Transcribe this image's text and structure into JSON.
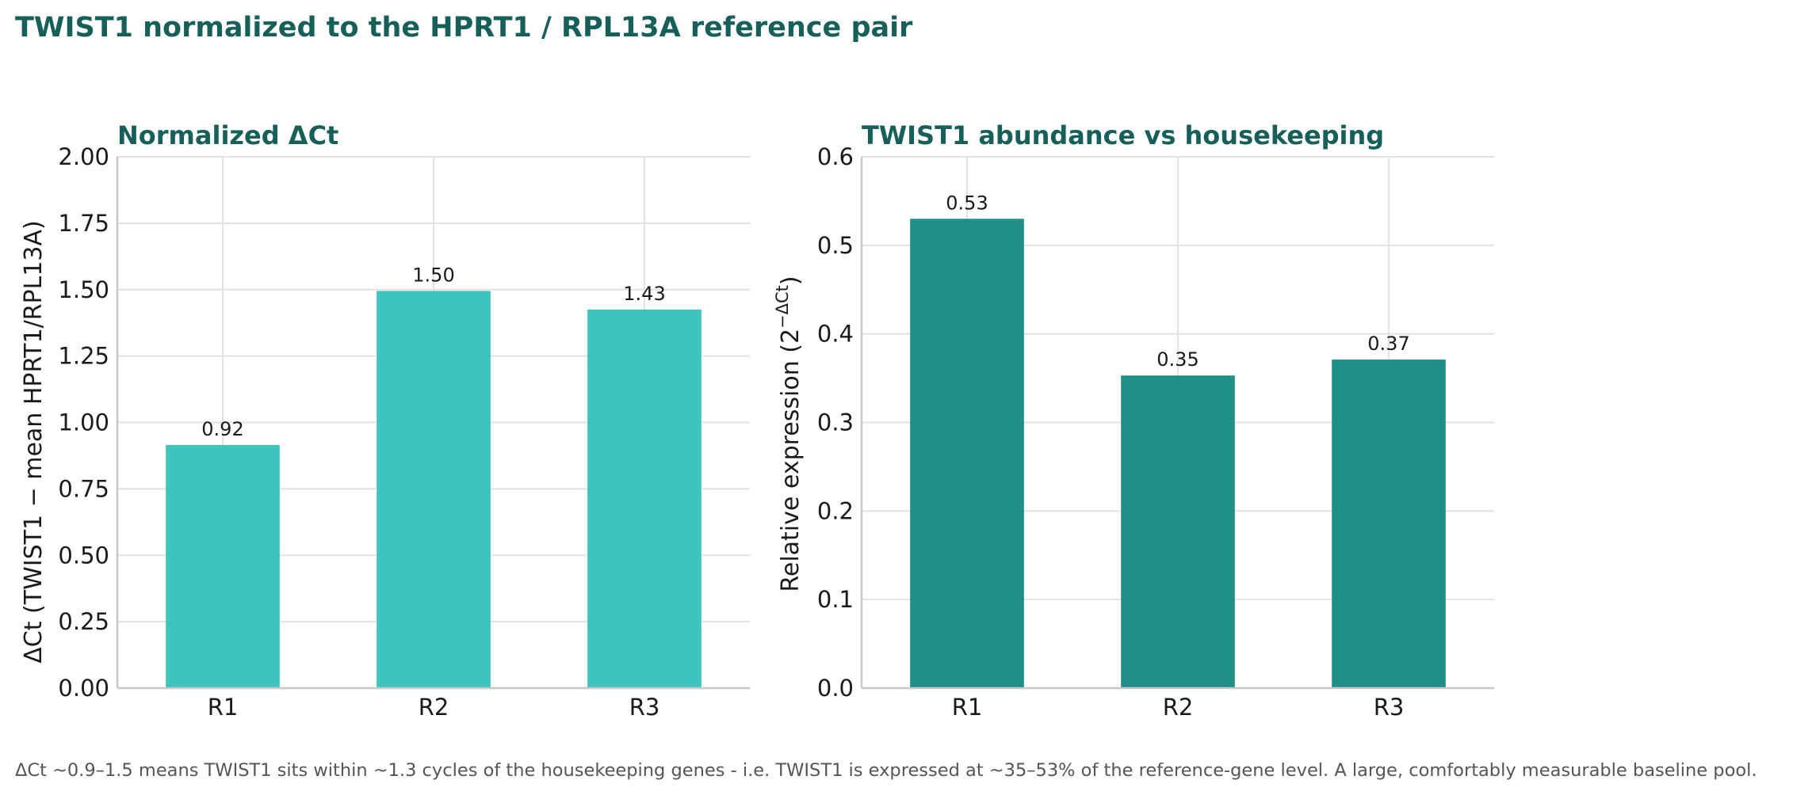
{
  "figure": {
    "title": "TWIST1 normalized to the HPRT1 / RPL13A reference pair",
    "footnote": "ΔCt ~0.9–1.5 means TWIST1 sits within ~1.3 cycles of the housekeeping genes - i.e. TWIST1 is expressed at ~35–53% of the reference-gene level. A large, comfortably measurable baseline pool."
  },
  "chart_data": [
    {
      "type": "bar",
      "title": "Normalized ΔCt",
      "xlabel": "",
      "ylabel": "ΔCt  (TWIST1 − mean HPRT1/RPL13A)",
      "categories": [
        "R1",
        "R2",
        "R3"
      ],
      "values": [
        0.915,
        1.495,
        1.425
      ],
      "data_labels": [
        "0.92",
        "1.50",
        "1.43"
      ],
      "ylim": [
        0,
        2.0
      ],
      "yticks": [
        0,
        0.25,
        0.5,
        0.75,
        1.0,
        1.25,
        1.5,
        1.75,
        2.0
      ],
      "ytick_labels": [
        "0.00",
        "0.25",
        "0.50",
        "0.75",
        "1.00",
        "1.25",
        "1.50",
        "1.75",
        "2.00"
      ],
      "bar_color": "#3dc4bd",
      "grid": true
    },
    {
      "type": "bar",
      "title": "TWIST1 abundance vs housekeeping",
      "xlabel": "",
      "ylabel": "Relative expression  (2",
      "ylabel_superscript": "−ΔCt",
      "ylabel_suffix": ")",
      "categories": [
        "R1",
        "R2",
        "R3"
      ],
      "values": [
        0.53,
        0.353,
        0.371
      ],
      "data_labels": [
        "0.53",
        "0.35",
        "0.37"
      ],
      "ylim": [
        0,
        0.6
      ],
      "yticks": [
        0,
        0.1,
        0.2,
        0.3,
        0.4,
        0.5,
        0.6
      ],
      "ytick_labels": [
        "0.0",
        "0.1",
        "0.2",
        "0.3",
        "0.4",
        "0.5",
        "0.6"
      ],
      "bar_color": "#1f8f88",
      "grid": true
    }
  ]
}
